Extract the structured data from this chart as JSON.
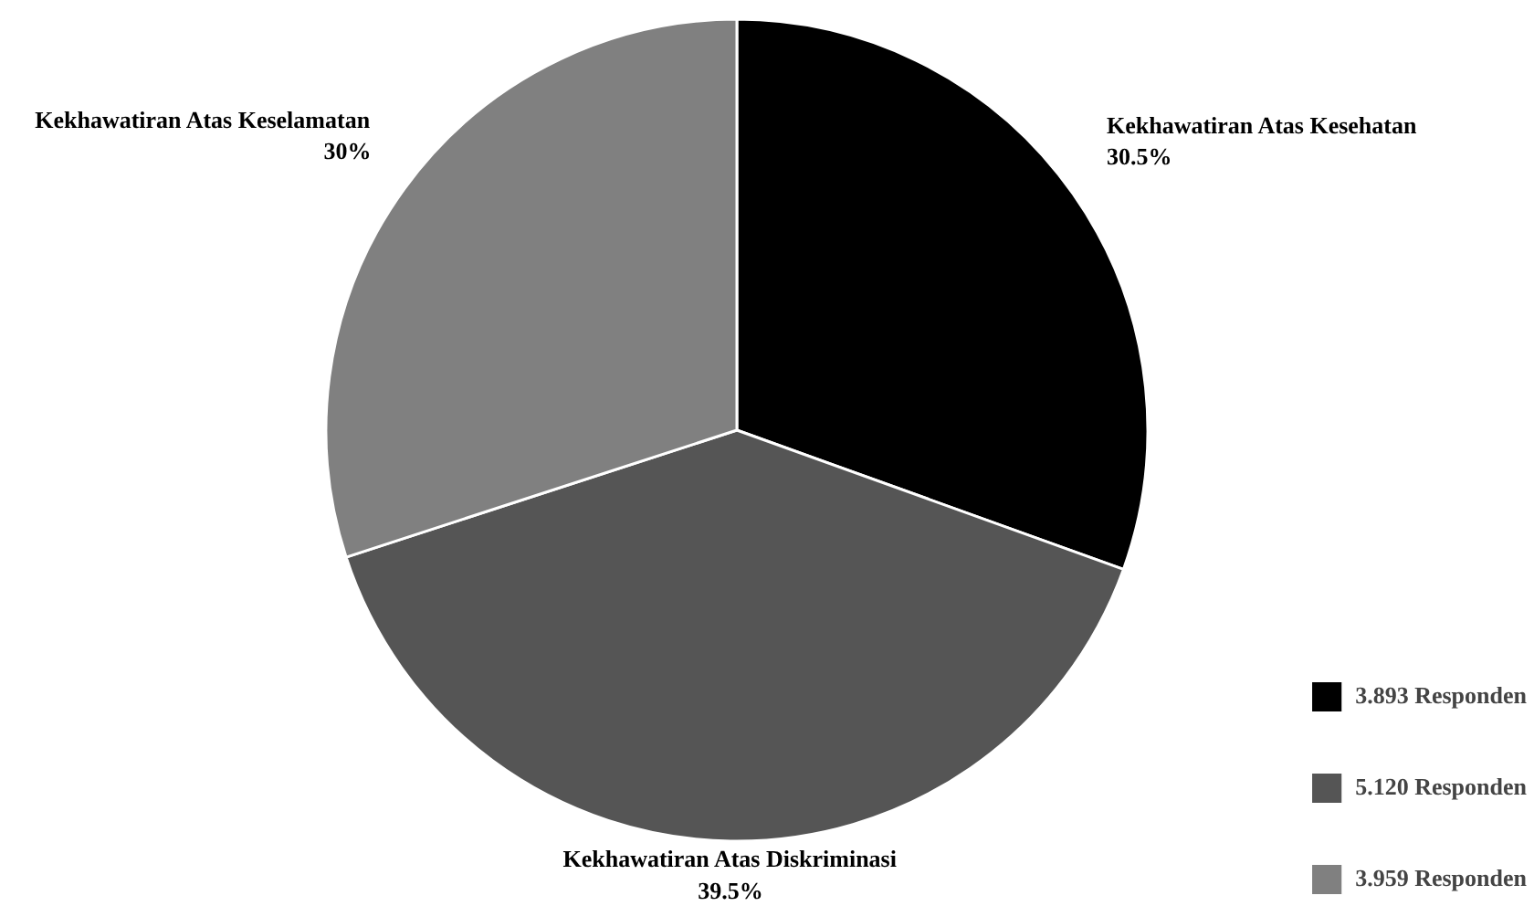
{
  "chart_data": {
    "type": "pie",
    "categories": [
      "3.893 Responden",
      "5.120 Responden",
      "3.959 Responden"
    ],
    "values": [
      30.5,
      39.5,
      30
    ],
    "colors": [
      "#000000",
      "#555555",
      "#808080"
    ],
    "value_labels": [
      "Kekhawatiran Atas Kesehatan\n30.5%",
      "Kekhawatiran Atas Diskriminasi\n39.5%",
      "Kekhawatiran Atas Keselamatan\n30%"
    ],
    "legend": "bottom right"
  }
}
